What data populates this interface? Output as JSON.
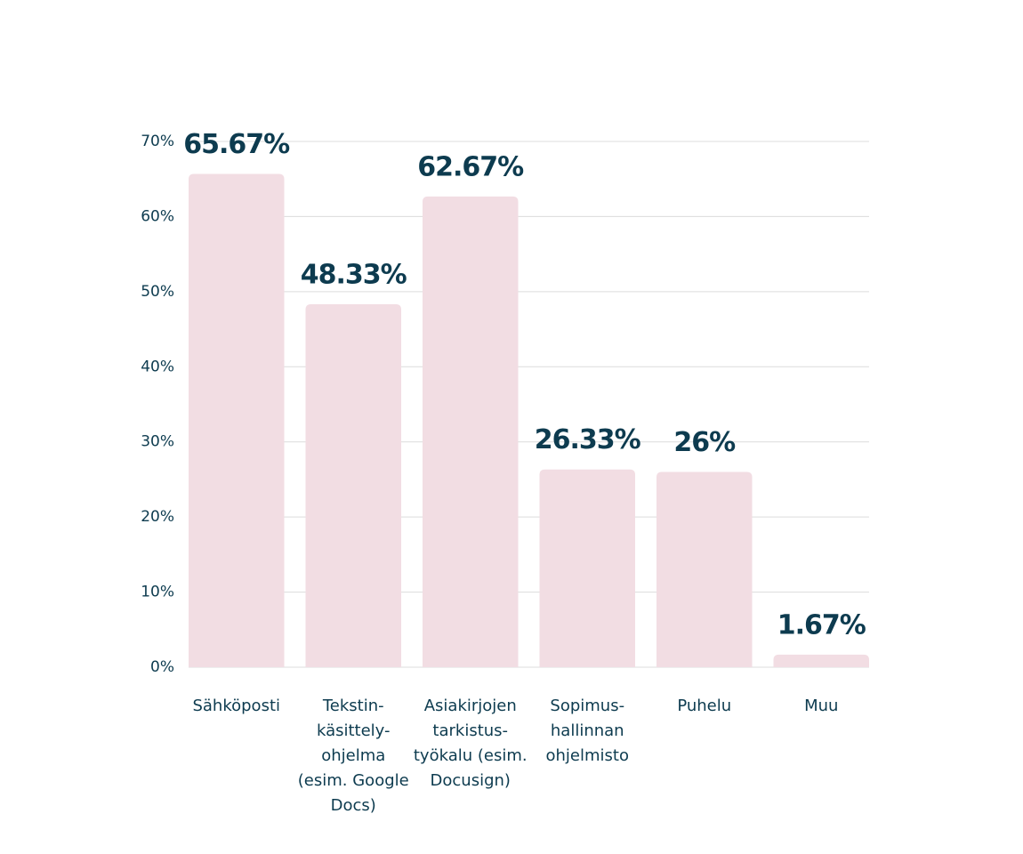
{
  "chart_data": {
    "type": "bar",
    "categories": [
      "Sähköposti",
      "Tekstin-käsittely-ohjelma (esim. Google Docs)",
      "Asiakirjojen tarkistus-työkalu (esim. Docusign)",
      "Sopimus-hallinnan ohjelmisto",
      "Puhelu",
      "Muu"
    ],
    "values": [
      65.67,
      48.33,
      62.67,
      26.33,
      26,
      1.67
    ],
    "value_labels": [
      "65.67%",
      "48.33%",
      "62.67%",
      "26.33%",
      "26%",
      "1.67%"
    ],
    "color": "#f2dde3",
    "ylim": [
      0,
      70
    ],
    "yticks": [
      {
        "value": 0,
        "label": "0%"
      },
      {
        "value": 10,
        "label": "10%"
      },
      {
        "value": 20,
        "label": "20%"
      },
      {
        "value": 30,
        "label": "30%"
      },
      {
        "value": 40,
        "label": "40%"
      },
      {
        "value": 50,
        "label": "50%"
      },
      {
        "value": 60,
        "label": "60%"
      },
      {
        "value": 70,
        "label": "70%"
      }
    ],
    "grid": true
  }
}
